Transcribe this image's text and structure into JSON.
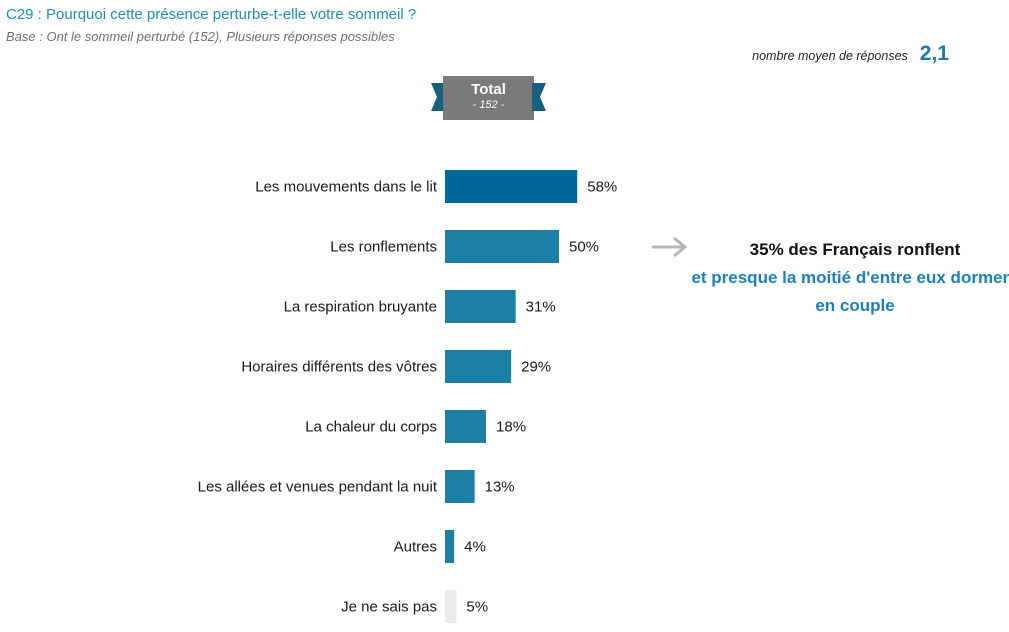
{
  "header": {
    "title": "C29 : Pourquoi cette présence perturbe-t-elle votre sommeil ?",
    "subtitle": "Base : Ont le sommeil perturbé (152), Plusieurs réponses possibles",
    "avg_label": "nombre moyen de réponses",
    "avg_value": "2,1"
  },
  "badge": {
    "label": "Total",
    "base": "- 152 -",
    "color": "#7a7a7a",
    "ribbon_color": "#17607e"
  },
  "callout": {
    "line1": "35% des Français ronflent",
    "line2": "et presque la moitié d'entre eux dorment en couple",
    "arrow_icon": "arrow-right-icon"
  },
  "chart_data": {
    "type": "bar",
    "orientation": "horizontal",
    "categories": [
      "Les mouvements dans le lit",
      "Les ronflements",
      "La respiration bruyante",
      "Horaires différents des vôtres",
      "La chaleur du corps",
      "Les allées et venues pendant la nuit",
      "Autres",
      "Je ne sais pas"
    ],
    "values": [
      58,
      50,
      31,
      29,
      18,
      13,
      4,
      5
    ],
    "value_labels": [
      "58%",
      "50%",
      "31%",
      "29%",
      "18%",
      "13%",
      "4%",
      "5%"
    ],
    "colors": [
      "#00689a",
      "#1b7fa6",
      "#1b7fa6",
      "#1b7fa6",
      "#1b7fa6",
      "#1b7fa6",
      "#1b7fa6",
      "#ececec"
    ],
    "xlim": [
      0,
      100
    ],
    "grid": false,
    "legend": "none"
  }
}
